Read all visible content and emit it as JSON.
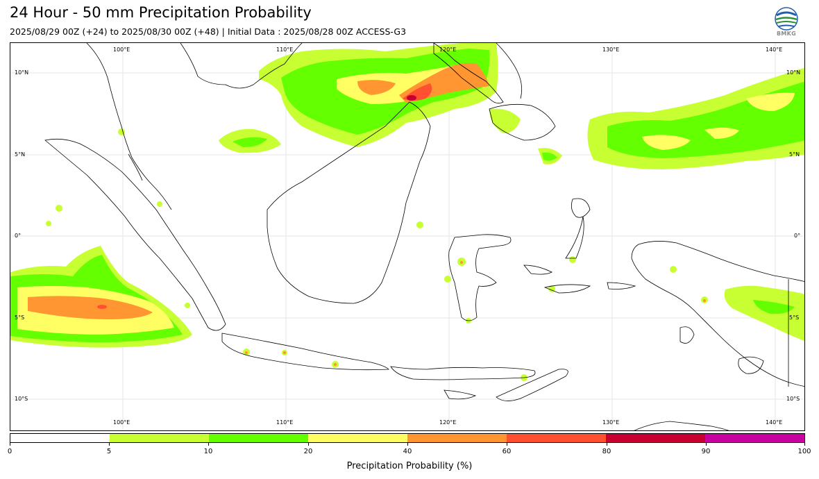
{
  "header": {
    "title": "24 Hour - 50 mm Precipitation Probability",
    "subtitle": "2025/08/29 00Z (+24) to 2025/08/30 00Z (+48) | Initial Data : 2025/08/28 00Z ACCESS-G3"
  },
  "logo": {
    "text": "BMKG",
    "icon": "bmkg-logo-icon"
  },
  "map": {
    "lon_labels": [
      "100°E",
      "110°E",
      "120°E",
      "130°E",
      "140°E"
    ],
    "lat_labels": [
      "10°N",
      "5°N",
      "0°",
      "5°S",
      "10°S"
    ],
    "lon_range": [
      93,
      142
    ],
    "lat_range": [
      -12,
      11.7
    ]
  },
  "legend": {
    "title": "Precipitation Probability (%)",
    "ticks": [
      "0",
      "5",
      "10",
      "20",
      "40",
      "60",
      "80",
      "90",
      "100"
    ],
    "colors": [
      "#ffffff",
      "#c8ff32",
      "#64ff00",
      "#ffff64",
      "#ff9632",
      "#ff5032",
      "#c80032",
      "#c800a0"
    ]
  }
}
